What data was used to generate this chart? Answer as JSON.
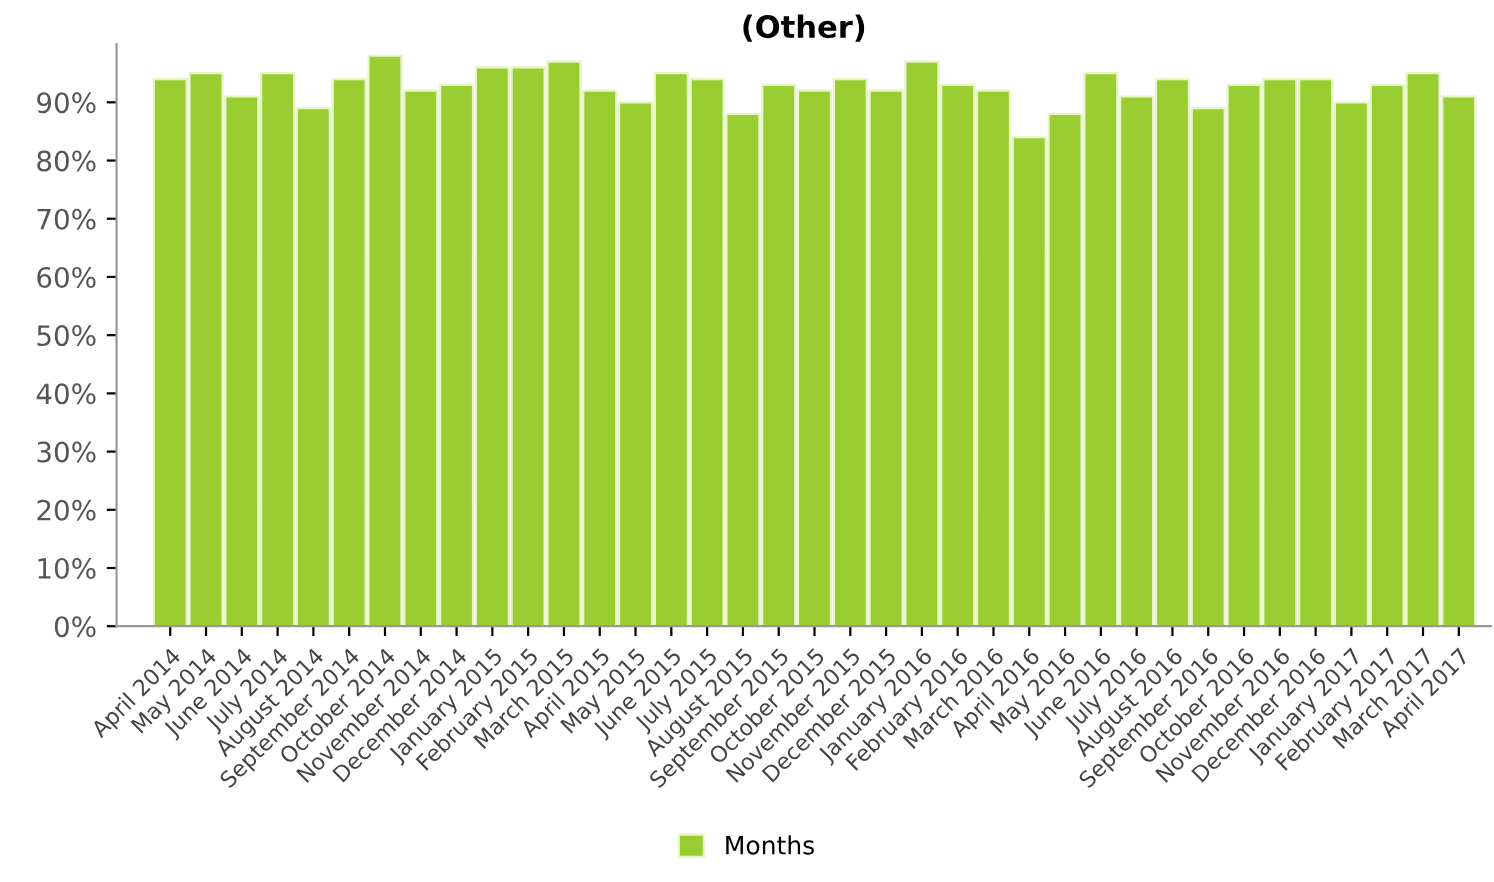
{
  "chart_data": {
    "type": "bar",
    "title": "(Other)",
    "categories": [
      "April 2014",
      "May 2014",
      "June 2014",
      "July 2014",
      "August 2014",
      "September 2014",
      "October 2014",
      "November 2014",
      "December 2014",
      "January 2015",
      "February 2015",
      "March 2015",
      "April 2015",
      "May 2015",
      "June 2015",
      "July 2015",
      "August 2015",
      "September 2015",
      "October 2015",
      "November 2015",
      "December 2015",
      "January 2016",
      "February 2016",
      "March 2016",
      "April 2016",
      "May 2016",
      "June 2016",
      "July 2016",
      "August 2016",
      "September 2016",
      "October 2016",
      "November 2016",
      "December 2016",
      "January 2017",
      "February 2017",
      "March 2017",
      "April 2017"
    ],
    "series": [
      {
        "name": "Months",
        "color": "#9acd32",
        "values": [
          94,
          95,
          91,
          95,
          89,
          94,
          98,
          92,
          93,
          96,
          96,
          97,
          92,
          90,
          95,
          94,
          88,
          93,
          92,
          94,
          92,
          97,
          93,
          92,
          84,
          88,
          95,
          91,
          94,
          89,
          93,
          94,
          94,
          90,
          93,
          95,
          91
        ]
      }
    ],
    "ylim": [
      0,
      100
    ],
    "yticks": [
      {
        "value": 0,
        "label": "0%"
      },
      {
        "value": 10,
        "label": "10%"
      },
      {
        "value": 20,
        "label": "20%"
      },
      {
        "value": 30,
        "label": "30%"
      },
      {
        "value": 40,
        "label": "40%"
      },
      {
        "value": 50,
        "label": "50%"
      },
      {
        "value": 60,
        "label": "60%"
      },
      {
        "value": 70,
        "label": "70%"
      },
      {
        "value": 80,
        "label": "80%"
      },
      {
        "value": 90,
        "label": "90%"
      }
    ],
    "grid": false,
    "legend": "bottom"
  }
}
